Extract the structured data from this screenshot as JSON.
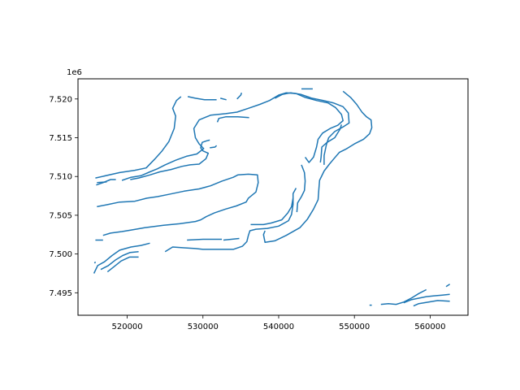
{
  "chart_data": {
    "type": "line",
    "title": "",
    "xlabel": "",
    "ylabel": "",
    "y_offset_label": "1e6",
    "xlim": [
      513500,
      565000
    ],
    "ylim": [
      7492100,
      7522600
    ],
    "x_ticks": [
      520000,
      530000,
      540000,
      550000,
      560000
    ],
    "x_tick_labels": [
      "520000",
      "530000",
      "540000",
      "550000",
      "560000"
    ],
    "y_ticks": [
      7495000,
      7500000,
      7505000,
      7510000,
      7515000,
      7520000
    ],
    "y_tick_labels": [
      "7.495",
      "7.500",
      "7.505",
      "7.510",
      "7.515",
      "7.520"
    ],
    "grid": false,
    "line_color": "#1f77b4",
    "series": [
      {
        "points": [
          [
            515800,
            7509800
          ],
          [
            519000,
            7510500
          ],
          [
            521000,
            7510800
          ],
          [
            522500,
            7511100
          ],
          [
            523600,
            7512200
          ],
          [
            524600,
            7513300
          ],
          [
            525500,
            7514500
          ],
          [
            526200,
            7516200
          ],
          [
            526400,
            7517800
          ],
          [
            526000,
            7518800
          ],
          [
            526500,
            7519800
          ],
          [
            527100,
            7520300
          ]
        ]
      },
      {
        "points": [
          [
            528000,
            7520300
          ],
          [
            529000,
            7520100
          ],
          [
            530200,
            7519900
          ],
          [
            531800,
            7519900
          ]
        ]
      },
      {
        "points": [
          [
            532300,
            7520100
          ],
          [
            533100,
            7519900
          ]
        ]
      },
      {
        "points": [
          [
            534500,
            7520000
          ],
          [
            535000,
            7520500
          ],
          [
            535100,
            7520800
          ]
        ]
      },
      {
        "points": [
          [
            515900,
            7508900
          ],
          [
            516800,
            7509200
          ],
          [
            517800,
            7509600
          ],
          [
            518500,
            7509600
          ]
        ]
      },
      {
        "points": [
          [
            516000,
            7509200
          ],
          [
            517300,
            7509300
          ]
        ]
      },
      {
        "points": [
          [
            519300,
            7509500
          ],
          [
            520500,
            7509900
          ],
          [
            521800,
            7510100
          ],
          [
            523000,
            7510600
          ],
          [
            524000,
            7511000
          ],
          [
            525000,
            7511500
          ],
          [
            526400,
            7512100
          ],
          [
            527800,
            7512600
          ],
          [
            529200,
            7512900
          ],
          [
            530100,
            7513600
          ],
          [
            529500,
            7514200
          ],
          [
            529000,
            7515000
          ],
          [
            528800,
            7516200
          ],
          [
            529500,
            7517300
          ],
          [
            531000,
            7517900
          ],
          [
            533000,
            7518100
          ],
          [
            534500,
            7518300
          ],
          [
            536000,
            7518800
          ],
          [
            537500,
            7519300
          ],
          [
            538800,
            7519800
          ],
          [
            540000,
            7520500
          ],
          [
            541000,
            7520800
          ],
          [
            542300,
            7520700
          ],
          [
            543500,
            7520200
          ],
          [
            545000,
            7519800
          ],
          [
            546500,
            7519500
          ],
          [
            547500,
            7518900
          ],
          [
            548300,
            7518000
          ],
          [
            548500,
            7517200
          ],
          [
            547800,
            7516600
          ],
          [
            546800,
            7516200
          ],
          [
            545800,
            7515600
          ],
          [
            545200,
            7514800
          ],
          [
            545000,
            7513800
          ],
          [
            544600,
            7512500
          ],
          [
            544000,
            7511800
          ],
          [
            543500,
            7512500
          ]
        ]
      },
      {
        "points": [
          [
            520400,
            7509600
          ],
          [
            521500,
            7509800
          ],
          [
            523000,
            7510200
          ],
          [
            524300,
            7510600
          ],
          [
            525800,
            7510900
          ],
          [
            527200,
            7511300
          ],
          [
            528300,
            7511500
          ],
          [
            529500,
            7511600
          ],
          [
            530400,
            7512300
          ],
          [
            530700,
            7513000
          ],
          [
            530000,
            7513300
          ],
          [
            529700,
            7513700
          ],
          [
            529900,
            7514400
          ],
          [
            530500,
            7514600
          ],
          [
            530900,
            7514700
          ]
        ]
      },
      {
        "points": [
          [
            530900,
            7513700
          ],
          [
            531600,
            7513800
          ],
          [
            531800,
            7514000
          ]
        ]
      },
      {
        "points": [
          [
            531900,
            7517000
          ],
          [
            532100,
            7517500
          ],
          [
            533000,
            7517700
          ],
          [
            534600,
            7517700
          ],
          [
            536100,
            7517600
          ]
        ]
      },
      {
        "points": [
          [
            516000,
            7506100
          ],
          [
            517500,
            7506400
          ],
          [
            519000,
            7506700
          ],
          [
            521000,
            7506800
          ],
          [
            522600,
            7507200
          ],
          [
            524000,
            7507400
          ],
          [
            525500,
            7507700
          ],
          [
            527500,
            7508100
          ],
          [
            529500,
            7508400
          ],
          [
            531000,
            7508800
          ],
          [
            532500,
            7509400
          ],
          [
            534000,
            7509900
          ],
          [
            534600,
            7510200
          ],
          [
            536000,
            7510300
          ],
          [
            537200,
            7510200
          ],
          [
            537300,
            7509200
          ],
          [
            537000,
            7508000
          ],
          [
            536000,
            7507200
          ],
          [
            535700,
            7506700
          ],
          [
            534400,
            7506200
          ],
          [
            533000,
            7505800
          ],
          [
            531500,
            7505300
          ],
          [
            530400,
            7504800
          ],
          [
            529700,
            7504400
          ],
          [
            529000,
            7504200
          ],
          [
            526900,
            7503900
          ],
          [
            524800,
            7503700
          ],
          [
            522300,
            7503400
          ],
          [
            520600,
            7503100
          ],
          [
            519300,
            7502900
          ],
          [
            517800,
            7502700
          ],
          [
            516800,
            7502400
          ]
        ]
      },
      {
        "points": [
          [
            515800,
            7501800
          ],
          [
            516800,
            7501800
          ]
        ]
      },
      {
        "points": [
          [
            515600,
            7497500
          ],
          [
            516100,
            7498500
          ],
          [
            517000,
            7499000
          ],
          [
            518000,
            7499800
          ],
          [
            519000,
            7500500
          ],
          [
            520500,
            7500900
          ],
          [
            521800,
            7501100
          ],
          [
            523000,
            7501400
          ]
        ]
      },
      {
        "points": [
          [
            516500,
            7498000
          ],
          [
            517500,
            7498500
          ],
          [
            518400,
            7499200
          ],
          [
            519400,
            7499800
          ],
          [
            520400,
            7500200
          ],
          [
            521500,
            7500300
          ]
        ]
      },
      {
        "points": [
          [
            517400,
            7497700
          ],
          [
            518300,
            7498400
          ],
          [
            519200,
            7499100
          ],
          [
            520300,
            7499600
          ],
          [
            521500,
            7499600
          ]
        ]
      },
      {
        "points": [
          [
            515700,
            7498800
          ],
          [
            515800,
            7499000
          ]
        ]
      },
      {
        "points": [
          [
            525000,
            7500300
          ],
          [
            526000,
            7500900
          ],
          [
            527500,
            7500800
          ],
          [
            529000,
            7500700
          ],
          [
            530000,
            7500600
          ],
          [
            531500,
            7500600
          ],
          [
            532500,
            7500600
          ],
          [
            534000,
            7500600
          ],
          [
            535200,
            7501000
          ],
          [
            535800,
            7501600
          ],
          [
            536000,
            7502400
          ],
          [
            536200,
            7503000
          ],
          [
            537000,
            7503200
          ],
          [
            538500,
            7503300
          ],
          [
            540000,
            7503600
          ],
          [
            541300,
            7504300
          ],
          [
            541700,
            7505100
          ],
          [
            541900,
            7506400
          ],
          [
            541900,
            7507800
          ],
          [
            542300,
            7508500
          ]
        ]
      },
      {
        "points": [
          [
            527900,
            7501800
          ],
          [
            530000,
            7501900
          ],
          [
            532500,
            7501900
          ]
        ]
      },
      {
        "points": [
          [
            532700,
            7501800
          ],
          [
            534800,
            7502000
          ]
        ]
      },
      {
        "points": [
          [
            536300,
            7503800
          ],
          [
            538000,
            7503800
          ],
          [
            539000,
            7504000
          ],
          [
            540400,
            7504400
          ],
          [
            541200,
            7505300
          ],
          [
            541700,
            7506100
          ],
          [
            541900,
            7507200
          ]
        ]
      },
      {
        "points": [
          [
            538200,
            7503000
          ],
          [
            538000,
            7502500
          ],
          [
            538200,
            7501500
          ],
          [
            539500,
            7501700
          ],
          [
            541000,
            7502400
          ],
          [
            542800,
            7503400
          ],
          [
            543800,
            7504500
          ],
          [
            544600,
            7505800
          ],
          [
            545200,
            7507000
          ],
          [
            545300,
            7508300
          ],
          [
            545400,
            7509500
          ],
          [
            546000,
            7510700
          ],
          [
            546700,
            7511600
          ],
          [
            547300,
            7512300
          ],
          [
            548000,
            7513100
          ],
          [
            549000,
            7513600
          ],
          [
            550000,
            7514200
          ],
          [
            551200,
            7514800
          ],
          [
            552000,
            7515500
          ],
          [
            552300,
            7516300
          ],
          [
            552200,
            7517300
          ],
          [
            551600,
            7517700
          ],
          [
            551000,
            7518300
          ],
          [
            550300,
            7519300
          ],
          [
            549500,
            7520200
          ],
          [
            548500,
            7521000
          ]
        ]
      },
      {
        "points": [
          [
            543000,
            7511500
          ],
          [
            543400,
            7510500
          ],
          [
            543500,
            7509400
          ],
          [
            543400,
            7508200
          ],
          [
            543000,
            7507400
          ],
          [
            542500,
            7506600
          ],
          [
            542400,
            7505400
          ]
        ]
      },
      {
        "points": [
          [
            545500,
            7511800
          ],
          [
            545600,
            7512500
          ],
          [
            545700,
            7513800
          ],
          [
            546400,
            7514400
          ],
          [
            547400,
            7515000
          ],
          [
            548100,
            7516100
          ],
          [
            548300,
            7516700
          ]
        ]
      },
      {
        "points": [
          [
            539500,
            7520100
          ],
          [
            540500,
            7520600
          ],
          [
            541600,
            7520800
          ],
          [
            542900,
            7520600
          ],
          [
            544400,
            7520100
          ],
          [
            545900,
            7519800
          ],
          [
            547200,
            7519500
          ],
          [
            548500,
            7519000
          ],
          [
            549200,
            7518200
          ],
          [
            549300,
            7516900
          ],
          [
            548500,
            7516400
          ],
          [
            547400,
            7515800
          ],
          [
            546600,
            7515000
          ],
          [
            546300,
            7514100
          ],
          [
            546000,
            7512700
          ],
          [
            546000,
            7511500
          ]
        ]
      },
      {
        "points": [
          [
            543000,
            7521300
          ],
          [
            544500,
            7521300
          ]
        ]
      },
      {
        "points": [
          [
            552000,
            7493400
          ],
          [
            552300,
            7493400
          ]
        ]
      },
      {
        "points": [
          [
            553500,
            7493500
          ],
          [
            554500,
            7493600
          ],
          [
            555500,
            7493500
          ],
          [
            556500,
            7493800
          ],
          [
            557500,
            7494300
          ],
          [
            558500,
            7494900
          ],
          [
            559500,
            7495400
          ]
        ]
      },
      {
        "points": [
          [
            556500,
            7493700
          ],
          [
            557500,
            7494100
          ],
          [
            558500,
            7494300
          ],
          [
            559500,
            7494500
          ],
          [
            560500,
            7494600
          ],
          [
            561600,
            7494700
          ],
          [
            562600,
            7494800
          ]
        ]
      },
      {
        "points": [
          [
            557800,
            7493300
          ],
          [
            558500,
            7493600
          ],
          [
            559800,
            7493800
          ],
          [
            561000,
            7494000
          ],
          [
            562600,
            7493900
          ]
        ]
      },
      {
        "points": [
          [
            562100,
            7495800
          ],
          [
            562600,
            7496100
          ]
        ]
      }
    ]
  }
}
